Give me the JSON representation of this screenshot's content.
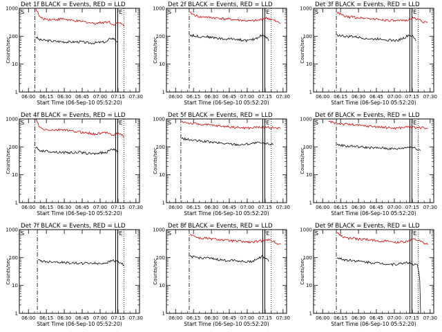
{
  "chart_data": [
    {
      "type": "line",
      "detector": "Det 1f",
      "title": "Det 1f BLACK = Events, RED = LLD",
      "xlabel": "Start Time (06-Sep-10 05:52:20)",
      "ylabel": "Counts/sec",
      "yscale": "log",
      "ylim": [
        1,
        1000
      ],
      "x_ticks": [
        "06:00",
        "06:15",
        "06:30",
        "06:45",
        "07:00",
        "07:15",
        "07:30"
      ],
      "y_ticks": [
        "1",
        "10",
        "100",
        "1000"
      ],
      "segments": [
        "S",
        "E"
      ],
      "series": [
        {
          "name": "Events",
          "color": "#000000",
          "start": "06:06",
          "end": "07:15",
          "values": [
            95,
            75,
            72,
            70,
            68,
            66,
            65,
            64,
            63,
            62,
            62,
            63,
            64,
            60,
            58,
            57,
            58,
            60,
            62,
            62,
            85,
            80,
            60
          ]
        },
        {
          "name": "LLD",
          "color": "#cc0000",
          "start": "06:06",
          "end": "07:20",
          "values": [
            1000,
            500,
            420,
            410,
            400,
            395,
            400,
            420,
            410,
            380,
            360,
            350,
            340,
            330,
            320,
            300,
            290,
            300,
            310,
            320,
            330,
            250,
            300,
            290,
            240
          ]
        }
      ]
    },
    {
      "type": "line",
      "detector": "Det 2f",
      "title": "Det 2f BLACK = Events, RED = LLD",
      "xlabel": "Start Time (06-Sep-10 05:52:20)",
      "ylabel": "Counts/sec",
      "yscale": "log",
      "ylim": [
        1,
        1000
      ],
      "x_ticks": [
        "06:00",
        "06:15",
        "06:30",
        "06:45",
        "07:00",
        "07:15",
        "07:30"
      ],
      "y_ticks": [
        "1",
        "10",
        "100",
        "1000"
      ],
      "segments": [
        "S",
        "E"
      ],
      "series": [
        {
          "name": "Events",
          "color": "#000000",
          "start": "06:12",
          "end": "07:18",
          "values": [
            110,
            105,
            100,
            95,
            100,
            95,
            90,
            88,
            85,
            80,
            78,
            80,
            82,
            78,
            75,
            72,
            70,
            72,
            80,
            90,
            110,
            100,
            70
          ]
        },
        {
          "name": "LLD",
          "color": "#cc0000",
          "start": "06:12",
          "end": "07:28",
          "values": [
            700,
            600,
            520,
            480,
            500,
            470,
            460,
            450,
            440,
            420,
            410,
            400,
            390,
            380,
            370,
            360,
            350,
            360,
            370,
            400,
            450,
            420,
            380,
            320,
            300
          ]
        }
      ]
    },
    {
      "type": "line",
      "detector": "Det 3f",
      "title": "Det 3f BLACK = Events, RED = LLD",
      "xlabel": "Start Time (06-Sep-10 05:52:20)",
      "ylabel": "Counts/sec",
      "yscale": "log",
      "ylim": [
        1,
        1000
      ],
      "x_ticks": [
        "06:00",
        "06:15",
        "06:30",
        "06:45",
        "07:00",
        "07:15",
        "07:30"
      ],
      "y_ticks": [
        "1",
        "10",
        "100",
        "1000"
      ],
      "segments": [
        "S",
        "E"
      ],
      "series": [
        {
          "name": "Events",
          "color": "#000000",
          "start": "06:12",
          "end": "07:18",
          "values": [
            110,
            105,
            100,
            95,
            100,
            95,
            90,
            88,
            85,
            80,
            78,
            80,
            82,
            78,
            75,
            72,
            70,
            72,
            80,
            90,
            110,
            100,
            70
          ]
        },
        {
          "name": "LLD",
          "color": "#cc0000",
          "start": "06:12",
          "end": "07:28",
          "values": [
            700,
            600,
            520,
            480,
            500,
            470,
            460,
            450,
            440,
            420,
            410,
            400,
            390,
            380,
            370,
            360,
            350,
            360,
            370,
            400,
            450,
            420,
            380,
            320,
            300
          ]
        }
      ]
    },
    {
      "type": "line",
      "detector": "Det 4f",
      "title": "Det 4f BLACK = Events, RED = LLD",
      "xlabel": "Start Time (06-Sep-10 05:52:20)",
      "ylabel": "Counts/sec",
      "yscale": "log",
      "ylim": [
        1,
        1000
      ],
      "x_ticks": [
        "06:00",
        "06:15",
        "06:30",
        "06:45",
        "07:00",
        "07:15",
        "07:30"
      ],
      "y_ticks": [
        "1",
        "10",
        "100",
        "1000"
      ],
      "segments": [
        "S",
        "E"
      ],
      "series": [
        {
          "name": "Events",
          "color": "#000000",
          "start": "06:06",
          "end": "07:15",
          "values": [
            95,
            75,
            72,
            70,
            68,
            66,
            65,
            64,
            63,
            62,
            62,
            63,
            64,
            60,
            58,
            57,
            58,
            60,
            62,
            62,
            85,
            80,
            60
          ]
        },
        {
          "name": "LLD",
          "color": "#cc0000",
          "start": "06:06",
          "end": "07:20",
          "values": [
            1000,
            500,
            420,
            410,
            400,
            395,
            400,
            420,
            410,
            380,
            360,
            350,
            340,
            330,
            320,
            300,
            290,
            300,
            310,
            320,
            330,
            250,
            300,
            290,
            240
          ]
        }
      ]
    },
    {
      "type": "line",
      "detector": "Det 5f",
      "title": "Det 5f BLACK = Events, RED = LLD",
      "xlabel": "Start Time (06-Sep-10 05:52:20)",
      "ylabel": "Counts/sec",
      "yscale": "log",
      "ylim": [
        1,
        1000
      ],
      "x_ticks": [
        "06:00",
        "06:15",
        "06:30",
        "06:45",
        "07:00",
        "07:15",
        "07:30"
      ],
      "y_ticks": [
        "1",
        "10",
        "100",
        "1000"
      ],
      "segments": [
        "S",
        "E"
      ],
      "series": [
        {
          "name": "Events",
          "color": "#000000",
          "start": "06:05",
          "end": "07:22",
          "values": [
            200,
            190,
            180,
            170,
            165,
            160,
            155,
            150,
            145,
            140,
            135,
            130,
            128,
            125,
            122,
            120,
            125,
            130,
            135,
            140,
            135,
            130,
            128,
            125
          ]
        },
        {
          "name": "LLD",
          "color": "#cc0000",
          "start": "06:05",
          "end": "07:28",
          "values": [
            800,
            750,
            700,
            680,
            650,
            640,
            620,
            600,
            580,
            560,
            550,
            540,
            520,
            500,
            490,
            480,
            470,
            480,
            500,
            520,
            510,
            500,
            490,
            470,
            450
          ]
        }
      ]
    },
    {
      "type": "line",
      "detector": "Det 6f",
      "title": "Det 6f BLACK = Events, RED = LLD",
      "xlabel": "Start Time (06-Sep-10 05:52:20)",
      "ylabel": "Counts/sec",
      "yscale": "log",
      "ylim": [
        1,
        1000
      ],
      "x_ticks": [
        "06:00",
        "06:15",
        "06:30",
        "06:45",
        "07:00",
        "07:15",
        "07:30"
      ],
      "y_ticks": [
        "1",
        "10",
        "100",
        "1000"
      ],
      "segments": [
        "S",
        "E"
      ],
      "series": [
        {
          "name": "Events",
          "color": "#000000",
          "start": "06:12",
          "end": "07:22",
          "values": [
            120,
            115,
            110,
            105,
            108,
            104,
            100,
            98,
            96,
            94,
            92,
            90,
            92,
            90,
            88,
            86,
            84,
            86,
            90,
            95,
            100,
            95,
            85,
            75
          ]
        },
        {
          "name": "LLD",
          "color": "#cc0000",
          "start": "06:05",
          "end": "07:28",
          "values": [
            800,
            750,
            700,
            680,
            650,
            640,
            620,
            600,
            580,
            560,
            550,
            540,
            520,
            500,
            490,
            480,
            470,
            480,
            500,
            520,
            510,
            500,
            490,
            470,
            450
          ]
        }
      ]
    },
    {
      "type": "line",
      "detector": "Det 7f",
      "title": "Det 7f BLACK = Events, RED = LLD",
      "xlabel": "Start Time (06-Sep-10 05:52:20)",
      "ylabel": "Counts/sec",
      "yscale": "log",
      "ylim": [
        1,
        1000
      ],
      "x_ticks": [
        "06:00",
        "06:15",
        "06:30",
        "06:45",
        "07:00",
        "07:15",
        "07:30"
      ],
      "y_ticks": [
        "1",
        "10",
        "100",
        "1000"
      ],
      "segments": [
        "S",
        "E"
      ],
      "series": [
        {
          "name": "Events",
          "color": "#000000",
          "start": "06:08",
          "end": "07:20",
          "values": [
            80,
            75,
            72,
            70,
            72,
            70,
            68,
            66,
            65,
            64,
            63,
            62,
            62,
            63,
            64,
            62,
            60,
            62,
            65,
            70,
            80,
            75,
            65,
            55
          ]
        }
      ]
    },
    {
      "type": "line",
      "detector": "Det 8f",
      "title": "Det 8f BLACK = Events, RED = LLD",
      "xlabel": "Start Time (06-Sep-10 05:52:20)",
      "ylabel": "Counts/sec",
      "yscale": "log",
      "ylim": [
        1,
        1000
      ],
      "x_ticks": [
        "06:00",
        "06:15",
        "06:30",
        "06:45",
        "07:00",
        "07:15",
        "07:30"
      ],
      "y_ticks": [
        "1",
        "10",
        "100",
        "1000"
      ],
      "segments": [
        "S",
        "E"
      ],
      "series": [
        {
          "name": "Events",
          "color": "#000000",
          "start": "06:12",
          "end": "07:18",
          "values": [
            110,
            105,
            100,
            95,
            100,
            95,
            90,
            88,
            85,
            80,
            78,
            80,
            82,
            78,
            75,
            72,
            70,
            72,
            80,
            90,
            110,
            100,
            70
          ]
        },
        {
          "name": "LLD",
          "color": "#cc0000",
          "start": "06:12",
          "end": "07:28",
          "values": [
            700,
            600,
            520,
            480,
            500,
            470,
            460,
            450,
            440,
            420,
            410,
            400,
            390,
            380,
            370,
            360,
            350,
            360,
            370,
            400,
            450,
            420,
            380,
            320,
            300
          ]
        }
      ]
    },
    {
      "type": "line",
      "detector": "Det 9f",
      "title": "Det 9f BLACK = Events, RED = LLD",
      "xlabel": "Start Time (06-Sep-10 05:52:20)",
      "ylabel": "Counts/sec",
      "yscale": "log",
      "ylim": [
        1,
        1000
      ],
      "x_ticks": [
        "06:00",
        "06:15",
        "06:30",
        "06:45",
        "07:00",
        "07:15",
        "07:30"
      ],
      "y_ticks": [
        "1",
        "10",
        "100",
        "1000"
      ],
      "segments": [
        "S",
        "E"
      ],
      "series": [
        {
          "name": "Events",
          "color": "#000000",
          "start": "06:12",
          "end": "07:22",
          "values": [
            100,
            90,
            85,
            80,
            82,
            78,
            75,
            72,
            70,
            68,
            66,
            65,
            63,
            62,
            60,
            58,
            57,
            58,
            60,
            62,
            70,
            60,
            55,
            55,
            1
          ]
        },
        {
          "name": "LLD",
          "color": "#cc0000",
          "start": "06:12",
          "end": "07:28",
          "values": [
            800,
            600,
            520,
            480,
            500,
            470,
            460,
            450,
            440,
            420,
            410,
            400,
            390,
            380,
            370,
            360,
            350,
            360,
            370,
            400,
            450,
            420,
            380,
            320,
            300
          ]
        }
      ]
    }
  ]
}
